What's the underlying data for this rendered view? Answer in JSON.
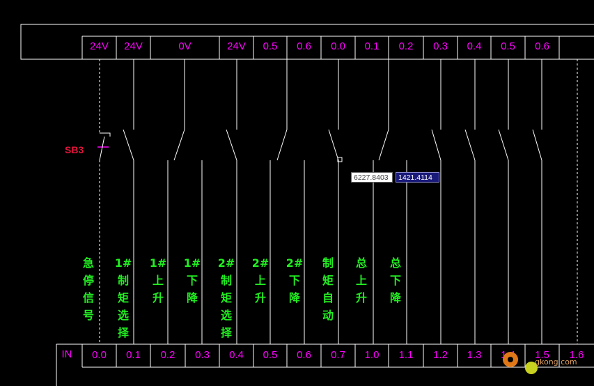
{
  "top_terminals": [
    "24V",
    "24V",
    "0V",
    "24V",
    "0.5",
    "0.6",
    "0.0",
    "0.1",
    "0.2",
    "0.3",
    "0.4",
    "0.5",
    "0.6",
    ""
  ],
  "switch_label": "SB3",
  "coord_x": "6227.8403",
  "coord_y": "1421.4114",
  "signals": [
    {
      "col": 0,
      "chars": [
        "急",
        "停",
        "信",
        "号"
      ]
    },
    {
      "col": 1,
      "chars": [
        "1#",
        "制",
        "矩",
        "选",
        "择"
      ]
    },
    {
      "col": 2,
      "chars": [
        "1#",
        "上",
        "升"
      ]
    },
    {
      "col": 3,
      "chars": [
        "1#",
        "下",
        "降"
      ]
    },
    {
      "col": 4,
      "chars": [
        "2#",
        "制",
        "矩",
        "选",
        "择"
      ]
    },
    {
      "col": 5,
      "chars": [
        "2#",
        "上",
        "升"
      ]
    },
    {
      "col": 6,
      "chars": [
        "2#",
        "下",
        "降"
      ]
    },
    {
      "col": 7,
      "chars": [
        "制",
        "矩",
        "自",
        "动"
      ]
    },
    {
      "col": 8,
      "chars": [
        "总",
        "上",
        "升"
      ]
    },
    {
      "col": 9,
      "chars": [
        "总",
        "下",
        "降"
      ]
    }
  ],
  "in_label": "IN",
  "bottom_terminals": [
    "0.0",
    "0.1",
    "0.2",
    "0.3",
    "0.4",
    "0.5",
    "0.6",
    "0.7",
    "1.0",
    "1.1",
    "1.2",
    "1.3",
    "1.4",
    "1.5",
    "1.6"
  ],
  "watermark": "gkong.com",
  "colors": {
    "terminal_text": "#ff00ff",
    "signal_text": "#22ee22",
    "switch_label": "#e0143c",
    "lines": "#ffffff"
  }
}
